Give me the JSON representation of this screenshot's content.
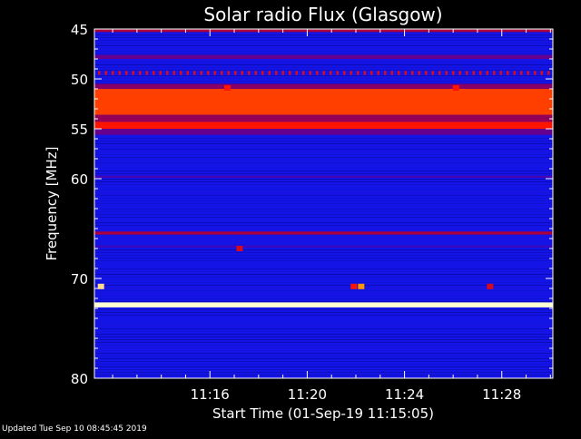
{
  "footer_text": "Updated Tue Sep 10 08:45:45 2019",
  "colors": {
    "background": "#000000",
    "axis": "#ffffff"
  },
  "chart_data": {
    "type": "heatmap",
    "title": "Solar radio Flux (Glasgow)",
    "xlabel": "Start Time (01-Sep-19 11:15:05)",
    "ylabel": "Frequency [MHz]",
    "x_range_minutes": [
      11.25,
      30.1
    ],
    "x_ticks": [
      {
        "label": "11:16",
        "minute": 16
      },
      {
        "label": "11:20",
        "minute": 20
      },
      {
        "label": "11:24",
        "minute": 24
      },
      {
        "label": "11:28",
        "minute": 28
      }
    ],
    "ylim": [
      45,
      80
    ],
    "y_ticks": [
      45,
      50,
      55,
      60,
      70,
      80
    ],
    "background_intensity": 0.15,
    "bands": [
      {
        "freq": [
          45.0,
          45.3
        ],
        "intensity": 0.5
      },
      {
        "freq": [
          47.6,
          48.0
        ],
        "intensity": 0.35
      },
      {
        "freq": [
          49.2,
          49.6
        ],
        "intensity": 0.62,
        "dotted": true
      },
      {
        "freq": [
          50.5,
          51.0
        ],
        "intensity": 0.42
      },
      {
        "freq": [
          51.0,
          53.6
        ],
        "intensity": 0.75
      },
      {
        "freq": [
          53.6,
          54.3
        ],
        "intensity": 0.45
      },
      {
        "freq": [
          54.3,
          55.0
        ],
        "intensity": 0.7
      },
      {
        "freq": [
          55.0,
          55.6
        ],
        "intensity": 0.35
      },
      {
        "freq": [
          59.7,
          59.9
        ],
        "intensity": 0.28
      },
      {
        "freq": [
          65.3,
          65.6
        ],
        "intensity": 0.5
      },
      {
        "freq": [
          66.7,
          66.9
        ],
        "intensity": 0.25
      },
      {
        "freq": [
          72.4,
          72.9
        ],
        "intensity": 1.0
      }
    ],
    "events": [
      {
        "minute": 11.5,
        "freq": 70.8,
        "intensity": 0.95
      },
      {
        "minute": 16.7,
        "freq": 50.9,
        "intensity": 0.7
      },
      {
        "minute": 26.1,
        "freq": 50.9,
        "intensity": 0.7
      },
      {
        "minute": 22.2,
        "freq": 70.8,
        "intensity": 0.85
      },
      {
        "minute": 21.9,
        "freq": 70.8,
        "intensity": 0.7
      },
      {
        "minute": 17.2,
        "freq": 67.0,
        "intensity": 0.6
      },
      {
        "minute": 27.5,
        "freq": 70.8,
        "intensity": 0.6
      }
    ]
  }
}
